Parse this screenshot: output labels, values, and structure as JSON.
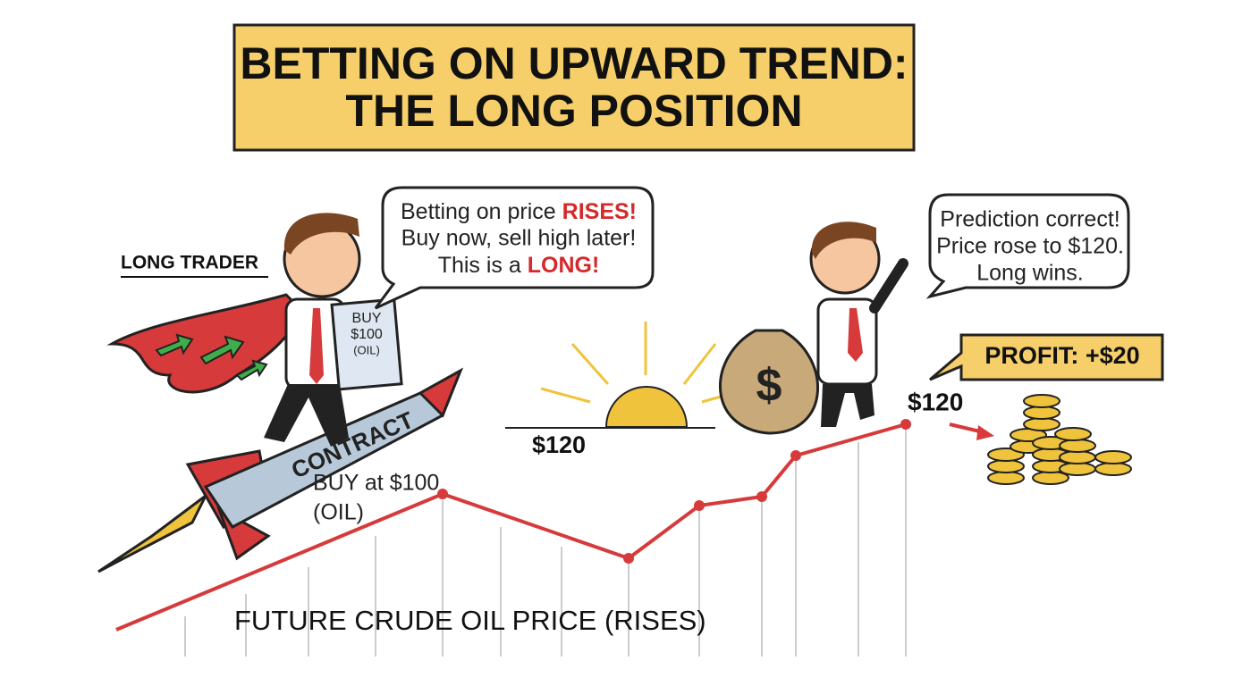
{
  "title": {
    "line1": "BETTING ON UPWARD TREND:",
    "line2": "THE LONG POSITION"
  },
  "trader_label": "LONG TRADER",
  "bubble_left": {
    "line1_start": "Betting on price ",
    "line1_highlight": "RISES!",
    "line2": "Buy now, sell high later!",
    "line3_start": "This is a ",
    "line3_highlight": "LONG!"
  },
  "paper": {
    "line1": "BUY",
    "line2": "$100",
    "line3": "(OIL)"
  },
  "rocket_label": "CONTRACT",
  "buy_label": {
    "line1": "BUY at $100",
    "line2": "(OIL)"
  },
  "horizon_price": "$120",
  "bubble_right": {
    "line1": "Prediction correct!",
    "line2": "Price rose to $120.",
    "line3": "Long wins."
  },
  "profit": "PROFIT: +$20",
  "end_price": "$120",
  "chart_caption": "FUTURE CRUDE OIL PRICE (RISES)"
}
